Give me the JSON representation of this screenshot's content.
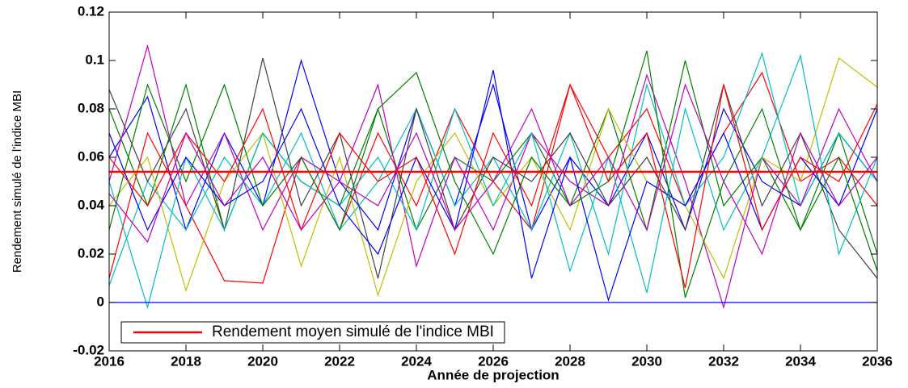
{
  "chart_data": {
    "type": "line",
    "y_label": "Rendement simulé de l'indice MBI",
    "x_label": "Année de projection",
    "x": [
      2016,
      2017,
      2018,
      2019,
      2020,
      2021,
      2022,
      2023,
      2024,
      2025,
      2026,
      2027,
      2028,
      2029,
      2030,
      2031,
      2032,
      2033,
      2034,
      2035,
      2036
    ],
    "xlim": [
      2016,
      2036
    ],
    "xticks": [
      2016,
      2018,
      2020,
      2022,
      2024,
      2026,
      2028,
      2030,
      2032,
      2034,
      2036
    ],
    "ylim": [
      -0.02,
      0.12
    ],
    "yticks": [
      -0.02,
      0,
      0.02,
      0.04,
      0.06,
      0.08,
      0.1,
      0.12
    ],
    "legend": "lower left",
    "series": [
      {
        "color": "#0000ff",
        "values": [
          0.06,
          0.085,
          0.03,
          0.07,
          0.04,
          0.1,
          0.05,
          0.03,
          0.08,
          0.04,
          0.09,
          0.03,
          0.06,
          0.04,
          0.07,
          0.03,
          0.08,
          0.05,
          0.04,
          0.07,
          0.05
        ]
      },
      {
        "color": "#008000",
        "values": [
          0.08,
          0.04,
          0.09,
          0.03,
          0.07,
          0.05,
          0.04,
          0.08,
          0.03,
          0.06,
          0.05,
          0.07,
          0.04,
          0.08,
          0.03,
          0.1,
          0.04,
          0.06,
          0.03,
          0.07,
          0.02
        ]
      },
      {
        "color": "#ff0000",
        "values": [
          0.01,
          0.07,
          0.04,
          0.009,
          0.008,
          0.06,
          0.03,
          0.07,
          0.04,
          0.08,
          0.05,
          0.03,
          0.09,
          0.06,
          0.08,
          0.04,
          0.07,
          0.095,
          0.05,
          0.06,
          0.04
        ]
      },
      {
        "color": "#00bfbf",
        "values": [
          0.007,
          0.05,
          0.03,
          0.06,
          0.04,
          0.07,
          0.03,
          0.05,
          0.08,
          0.04,
          0.06,
          0.03,
          0.07,
          0.02,
          0.09,
          0.04,
          0.06,
          0.103,
          0.04,
          0.07,
          0.05
        ]
      },
      {
        "color": "#bf00bf",
        "values": [
          0.05,
          0.106,
          0.04,
          0.07,
          0.03,
          0.06,
          0.05,
          0.09,
          0.015,
          0.06,
          0.03,
          0.07,
          0.05,
          0.04,
          0.094,
          0.05,
          -0.002,
          0.06,
          0.04,
          0.08,
          0.05
        ]
      },
      {
        "color": "#bfbf00",
        "values": [
          0.04,
          0.06,
          0.005,
          0.05,
          0.07,
          0.015,
          0.06,
          0.003,
          0.05,
          0.07,
          0.04,
          0.06,
          0.03,
          0.08,
          0.05,
          0.04,
          0.01,
          0.06,
          0.05,
          0.101,
          0.089
        ]
      },
      {
        "color": "#404040",
        "values": [
          0.088,
          0.05,
          0.08,
          0.03,
          0.101,
          0.04,
          0.07,
          0.01,
          0.08,
          0.03,
          0.06,
          0.05,
          0.07,
          0.04,
          0.06,
          0.03,
          0.09,
          0.04,
          0.07,
          0.03,
          0.01
        ]
      },
      {
        "color": "#00bfbf",
        "values": [
          0.05,
          -0.002,
          0.06,
          0.03,
          0.07,
          0.05,
          0.04,
          0.06,
          0.03,
          0.08,
          0.04,
          0.07,
          0.013,
          0.06,
          0.004,
          0.08,
          0.03,
          0.06,
          0.102,
          0.02,
          0.06
        ]
      },
      {
        "color": "#0000ff",
        "values": [
          0.07,
          0.03,
          0.06,
          0.04,
          0.05,
          0.08,
          0.04,
          0.02,
          0.06,
          0.03,
          0.096,
          0.01,
          0.06,
          0.001,
          0.05,
          0.04,
          0.07,
          0.03,
          0.06,
          0.04,
          0.08
        ]
      },
      {
        "color": "#008000",
        "values": [
          0.03,
          0.09,
          0.05,
          0.09,
          0.04,
          0.06,
          0.03,
          0.08,
          0.095,
          0.05,
          0.02,
          0.06,
          0.04,
          0.05,
          0.104,
          0.002,
          0.05,
          0.08,
          0.03,
          0.06,
          0.013
        ]
      },
      {
        "color": "#ff0000",
        "values": [
          0.06,
          0.04,
          0.07,
          0.05,
          0.08,
          0.03,
          0.07,
          0.05,
          0.06,
          0.02,
          0.07,
          0.04,
          0.09,
          0.05,
          0.07,
          0.006,
          0.09,
          0.03,
          0.06,
          0.05,
          0.082
        ]
      },
      {
        "color": "#bf00bf",
        "values": [
          0.045,
          0.025,
          0.07,
          0.04,
          0.06,
          0.03,
          0.05,
          0.04,
          0.07,
          0.03,
          0.05,
          0.08,
          0.04,
          0.06,
          0.03,
          0.09,
          0.05,
          0.02,
          0.07,
          0.04,
          0.06
        ]
      },
      {
        "color": "#0000ff",
        "values": [
          0,
          0,
          0,
          0,
          0,
          0,
          0,
          0,
          0,
          0,
          0,
          0,
          0,
          0,
          0,
          0,
          0,
          0,
          0,
          0,
          0
        ]
      },
      {
        "name": "Rendement moyen simulé de l'indice MBI",
        "color": "#ff0000",
        "values": [
          0.054,
          0.054,
          0.054,
          0.054,
          0.054,
          0.054,
          0.054,
          0.054,
          0.054,
          0.054,
          0.054,
          0.054,
          0.054,
          0.054,
          0.054,
          0.054,
          0.054,
          0.054,
          0.054,
          0.054,
          0.054
        ]
      }
    ]
  }
}
